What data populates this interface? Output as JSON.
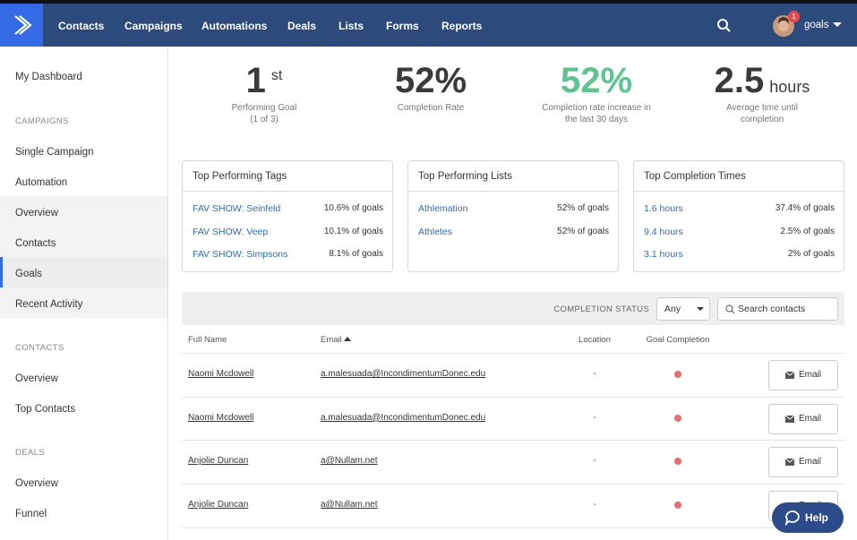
{
  "nav": {
    "items": [
      "Contacts",
      "Campaigns",
      "Automations",
      "Deals",
      "Lists",
      "Forms",
      "Reports"
    ],
    "badge": "1",
    "user": "goals"
  },
  "sidebar": {
    "top": "My Dashboard",
    "groups": [
      {
        "heading": "CAMPAIGNS",
        "items": [
          "Single Campaign",
          "Automation",
          "Overview",
          "Contacts",
          "Goals",
          "Recent Activity"
        ]
      },
      {
        "heading": "CONTACTS",
        "items": [
          "Overview",
          "Top Contacts"
        ]
      },
      {
        "heading": "DEALS",
        "items": [
          "Overview",
          "Funnel"
        ]
      }
    ]
  },
  "stats": [
    {
      "value": "1",
      "suffix": "st",
      "label": [
        "Performing Goal",
        "(1 of 3)"
      ]
    },
    {
      "value": "52%",
      "label": [
        "Completion Rate"
      ]
    },
    {
      "value": "52%",
      "color": "#5cc58e",
      "label": [
        "Completion rate increase in",
        "the last 30 days"
      ]
    },
    {
      "value": "2.5",
      "suffix": "hours",
      "label": [
        "Average time until",
        "completion"
      ]
    }
  ],
  "cards": [
    {
      "title": "Top Performing Tags",
      "rows": [
        {
          "name": "FAV SHOW: Seinfeld",
          "share": "10.6% of goals"
        },
        {
          "name": "FAV SHOW: Veep",
          "share": "10.1% of goals"
        },
        {
          "name": "FAV SHOW: Simpsons",
          "share": "8.1% of goals"
        }
      ]
    },
    {
      "title": "Top Performing Lists",
      "rows": [
        {
          "name": "Athlemation",
          "share": "52% of goals"
        },
        {
          "name": "Athletes",
          "share": "52% of goals"
        }
      ]
    },
    {
      "title": "Top Completion Times",
      "rows": [
        {
          "name": "1.6 hours",
          "share": "37.4% of goals"
        },
        {
          "name": "9.4 hours",
          "share": "2.5% of goals"
        },
        {
          "name": "3.1 hours",
          "share": "2% of goals"
        }
      ]
    }
  ],
  "table": {
    "filter_label": "COMPLETION STATUS",
    "filter_value": "Any",
    "search_placeholder": "Search contacts",
    "columns": [
      "Full Name",
      "Email",
      "Location",
      "Goal Completion"
    ],
    "rows": [
      {
        "name": "Naomi Mcdowell",
        "email": "a.malesuada@IncondimentumDonec.edu",
        "location": "-",
        "button": "Email"
      },
      {
        "name": "Naomi Mcdowell",
        "email": "a.malesuada@IncondimentumDonec.edu",
        "location": "-",
        "button": "Email"
      },
      {
        "name": "Anjolie Duncan",
        "email": "a@Nullam.net",
        "location": "-",
        "button": "Email"
      },
      {
        "name": "Anjolie Duncan",
        "email": "a@Nullam.net",
        "location": "-",
        "button": "Email"
      }
    ]
  },
  "help": "Help"
}
